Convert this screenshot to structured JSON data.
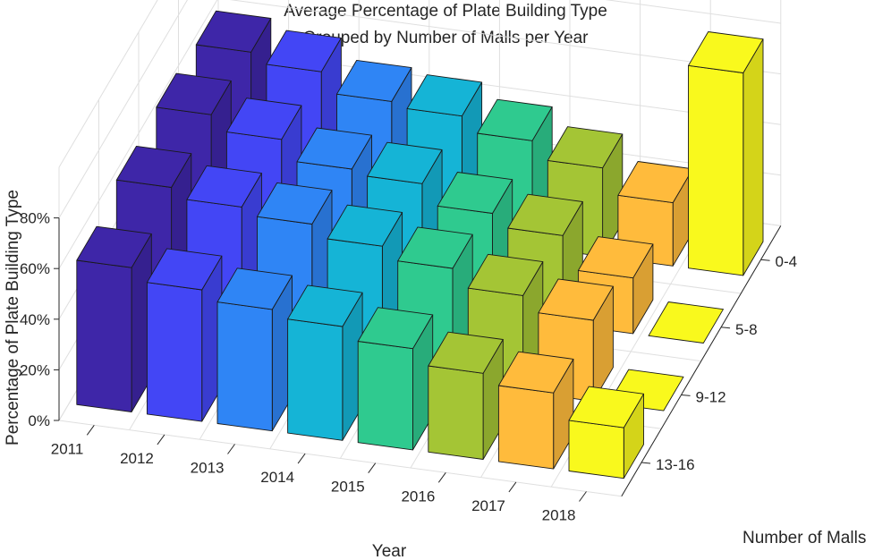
{
  "chart_data": {
    "type": "bar3d",
    "title": [
      "Average Percentage of Plate Building Type",
      "Grouped by Number of Malls per Year"
    ],
    "xlabel": "Year",
    "ylabel": "Number of Malls",
    "zlabel": "Percentage of Plate Building Type",
    "years": [
      "2011",
      "2012",
      "2013",
      "2014",
      "2015",
      "2016",
      "2017",
      "2018"
    ],
    "mall_groups": [
      "0-4",
      "5-8",
      "9-12",
      "13-16"
    ],
    "z_ticks": [
      "0%",
      "20%",
      "40%",
      "60%",
      "80%"
    ],
    "zlim": [
      0,
      100
    ],
    "grid": true,
    "year_colors": [
      "#3e26a8",
      "#4346f5",
      "#2f85f5",
      "#15b4d6",
      "#2fca8f",
      "#a4c535",
      "#ffbb3c",
      "#f9f91d"
    ],
    "series": [
      {
        "name": "0-4",
        "values": [
          62,
          58,
          50,
          48,
          42,
          35,
          25,
          80
        ]
      },
      {
        "name": "5-8",
        "values": [
          64,
          58,
          50,
          48,
          40,
          35,
          22,
          0
        ]
      },
      {
        "name": "9-12",
        "values": [
          62,
          58,
          55,
          50,
          45,
          38,
          32,
          0
        ]
      },
      {
        "name": "13-16",
        "values": [
          57,
          52,
          48,
          45,
          40,
          34,
          30,
          20
        ]
      }
    ]
  }
}
